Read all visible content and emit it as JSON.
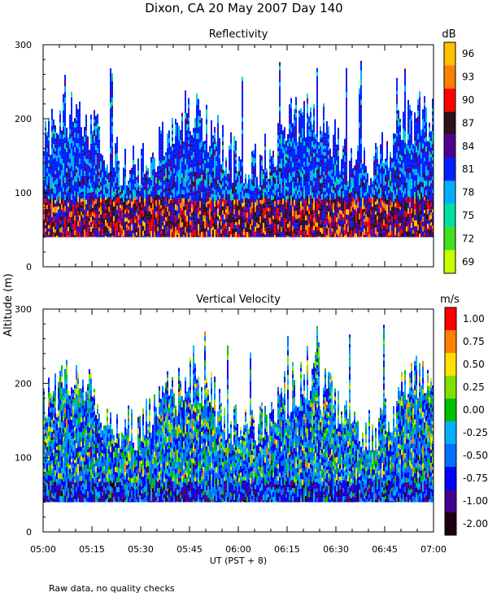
{
  "figure_title": "Dixon, CA 20 May 2007  Day 140",
  "footnote": "Raw data, no quality checks",
  "shared_ylabel": "Altitude (m)",
  "shared_xlabel": "UT  (PST + 8)",
  "chart_data": [
    {
      "type": "heatmap",
      "title": "Reflectivity",
      "colorbar_unit": "dB",
      "colorbar_ticks": [
        "96",
        "93",
        "90",
        "87",
        "84",
        "81",
        "78",
        "75",
        "72",
        "69"
      ],
      "colorbar_colors": [
        "#ffc000",
        "#ff8000",
        "#ff0000",
        "#301020",
        "#500090",
        "#0020ff",
        "#00b0ff",
        "#00e0a0",
        "#40e020",
        "#c8ff00"
      ],
      "ylim": [
        0,
        300
      ],
      "yticks": [
        "0",
        "100",
        "200",
        "300"
      ],
      "xticks": [
        "05:00",
        "05:15",
        "05:30",
        "05:45",
        "06:00",
        "06:15",
        "06:30",
        "06:45",
        "07:00"
      ],
      "data_floor_m": 40,
      "mean_top_m": 170,
      "max_top_m": 280
    },
    {
      "type": "heatmap",
      "title": "Vertical Velocity",
      "colorbar_unit": "m/s",
      "colorbar_ticks": [
        "1.00",
        "0.75",
        "0.50",
        "0.25",
        "0.00",
        "-0.25",
        "-0.50",
        "-0.75",
        "-1.00",
        "-2.00"
      ],
      "colorbar_colors": [
        "#ff0000",
        "#ff8000",
        "#ffe000",
        "#80e000",
        "#00c000",
        "#00b0ff",
        "#0070ff",
        "#0000ff",
        "#400090",
        "#200010"
      ],
      "ylim": [
        0,
        300
      ],
      "yticks": [
        "0",
        "100",
        "200",
        "300"
      ],
      "xticks": [
        "05:00",
        "05:15",
        "05:30",
        "05:45",
        "06:00",
        "06:15",
        "06:30",
        "06:45",
        "07:00"
      ],
      "data_floor_m": 40,
      "mean_top_m": 170,
      "max_top_m": 280
    }
  ]
}
